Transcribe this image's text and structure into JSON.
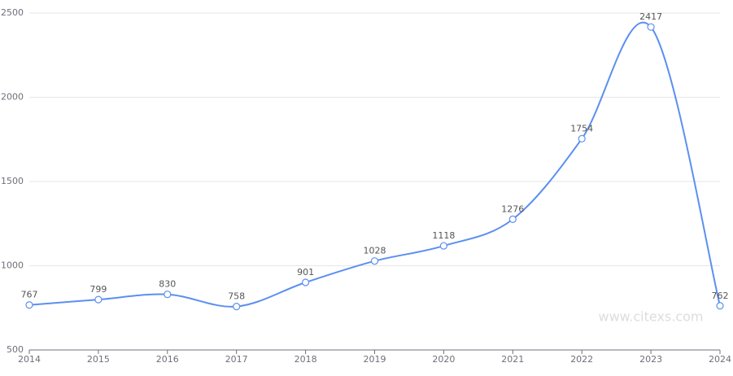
{
  "chart_data": {
    "type": "line",
    "x": [
      2014,
      2015,
      2016,
      2017,
      2018,
      2019,
      2020,
      2021,
      2022,
      2023,
      2024
    ],
    "values": [
      767,
      799,
      830,
      758,
      901,
      1028,
      1118,
      1276,
      1754,
      2417,
      762
    ],
    "color": "#5b8ff0",
    "xlim": [
      2014,
      2024
    ],
    "xticks": [
      2014,
      2015,
      2016,
      2017,
      2018,
      2019,
      2020,
      2021,
      2022,
      2023,
      2024
    ],
    "ylim": [
      500,
      2500
    ],
    "yticks": [
      500,
      1000,
      1500,
      2000,
      2500
    ],
    "grid": true,
    "smooth": true,
    "watermark": "www.citexs.com"
  }
}
